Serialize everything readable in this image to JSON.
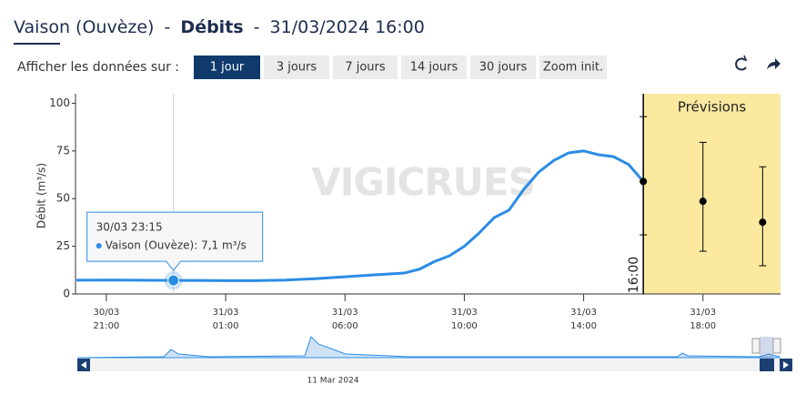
{
  "header": {
    "station": "Vaison (Ouvèze)",
    "separator": "-",
    "variable": "Débits",
    "date": "31/03/2024 16:00"
  },
  "range_selector": {
    "label": "Afficher les données sur :",
    "buttons": [
      "1 jour",
      "3 jours",
      "7 jours",
      "14 jours",
      "30 jours",
      "Zoom init."
    ],
    "selected": "1 jour"
  },
  "chart_data": {
    "type": "line",
    "y_label": "Débit (m³/s)",
    "watermark": "VIGICRUES",
    "x": [
      "2024-03-30T20:00+01:00",
      "2024-03-30T21:00+01:00",
      "2024-03-30T22:00+01:00",
      "2024-03-30T23:15+01:00",
      "2024-03-31T00:00+01:00",
      "2024-03-31T01:00+01:00",
      "2024-03-31T03:00+02:00",
      "2024-03-31T04:00+02:00",
      "2024-03-31T05:00+02:00",
      "2024-03-31T06:00+02:00",
      "2024-03-31T07:00+02:00",
      "2024-03-31T08:00+02:00",
      "2024-03-31T08:30+02:00",
      "2024-03-31T09:00+02:00",
      "2024-03-31T09:30+02:00",
      "2024-03-31T10:00+02:00",
      "2024-03-31T10:30+02:00",
      "2024-03-31T11:00+02:00",
      "2024-03-31T11:30+02:00",
      "2024-03-31T12:00+02:00",
      "2024-03-31T12:30+02:00",
      "2024-03-31T13:00+02:00",
      "2024-03-31T13:30+02:00",
      "2024-03-31T14:00+02:00",
      "2024-03-31T14:30+02:00",
      "2024-03-31T15:00+02:00",
      "2024-03-31T15:30+02:00",
      "2024-03-31T16:00+02:00"
    ],
    "series": [
      {
        "name": "Vaison (Ouvèze)",
        "color": "#2b8ce6",
        "values": [
          7.2,
          7.3,
          7.2,
          7.1,
          7.1,
          7.0,
          7.0,
          7.3,
          8,
          9,
          10,
          11,
          13,
          17,
          20,
          25,
          32,
          40,
          44,
          55,
          64,
          70,
          74,
          75,
          73,
          72,
          68,
          59
        ]
      }
    ],
    "forecast": {
      "label": "Prévisions",
      "band_color": "#fbe9a0",
      "color": "#000000",
      "x": [
        "2024-03-31T16:00+02:00",
        "2024-03-31T18:00+02:00",
        "2024-03-31T20:00+02:00"
      ],
      "values": [
        59,
        48.6,
        37.6
      ],
      "low": [
        31,
        22.4,
        14.8
      ],
      "high": [
        93,
        79.5,
        66.7
      ]
    },
    "annotation": "16:00",
    "tooltip": {
      "date": "30/03 23:15",
      "text": "Vaison (Ouvèze): 7,1 m³/s"
    },
    "xlim": [
      "2024-03-30T19:58+01:00",
      "2024-03-31T20:36+02:00"
    ],
    "xticks": [
      {
        "value": "2024-03-30T21:00+01:00",
        "label": "30/03 21:00"
      },
      {
        "value": "2024-03-31T01:00+01:00",
        "label": "31/03 01:00"
      },
      {
        "value": "2024-03-31T06:00+02:00",
        "label": "31/03 06:00"
      },
      {
        "value": "2024-03-31T10:00+02:00",
        "label": "31/03 10:00"
      },
      {
        "value": "2024-03-31T14:00+02:00",
        "label": "31/03 14:00"
      },
      {
        "value": "2024-03-31T18:00+02:00",
        "label": "31/03 18:00"
      }
    ],
    "ylim": [
      0,
      105
    ],
    "yticks": [
      0,
      25,
      50,
      75,
      100
    ],
    "navigator_label": "11 Mar 2024"
  }
}
